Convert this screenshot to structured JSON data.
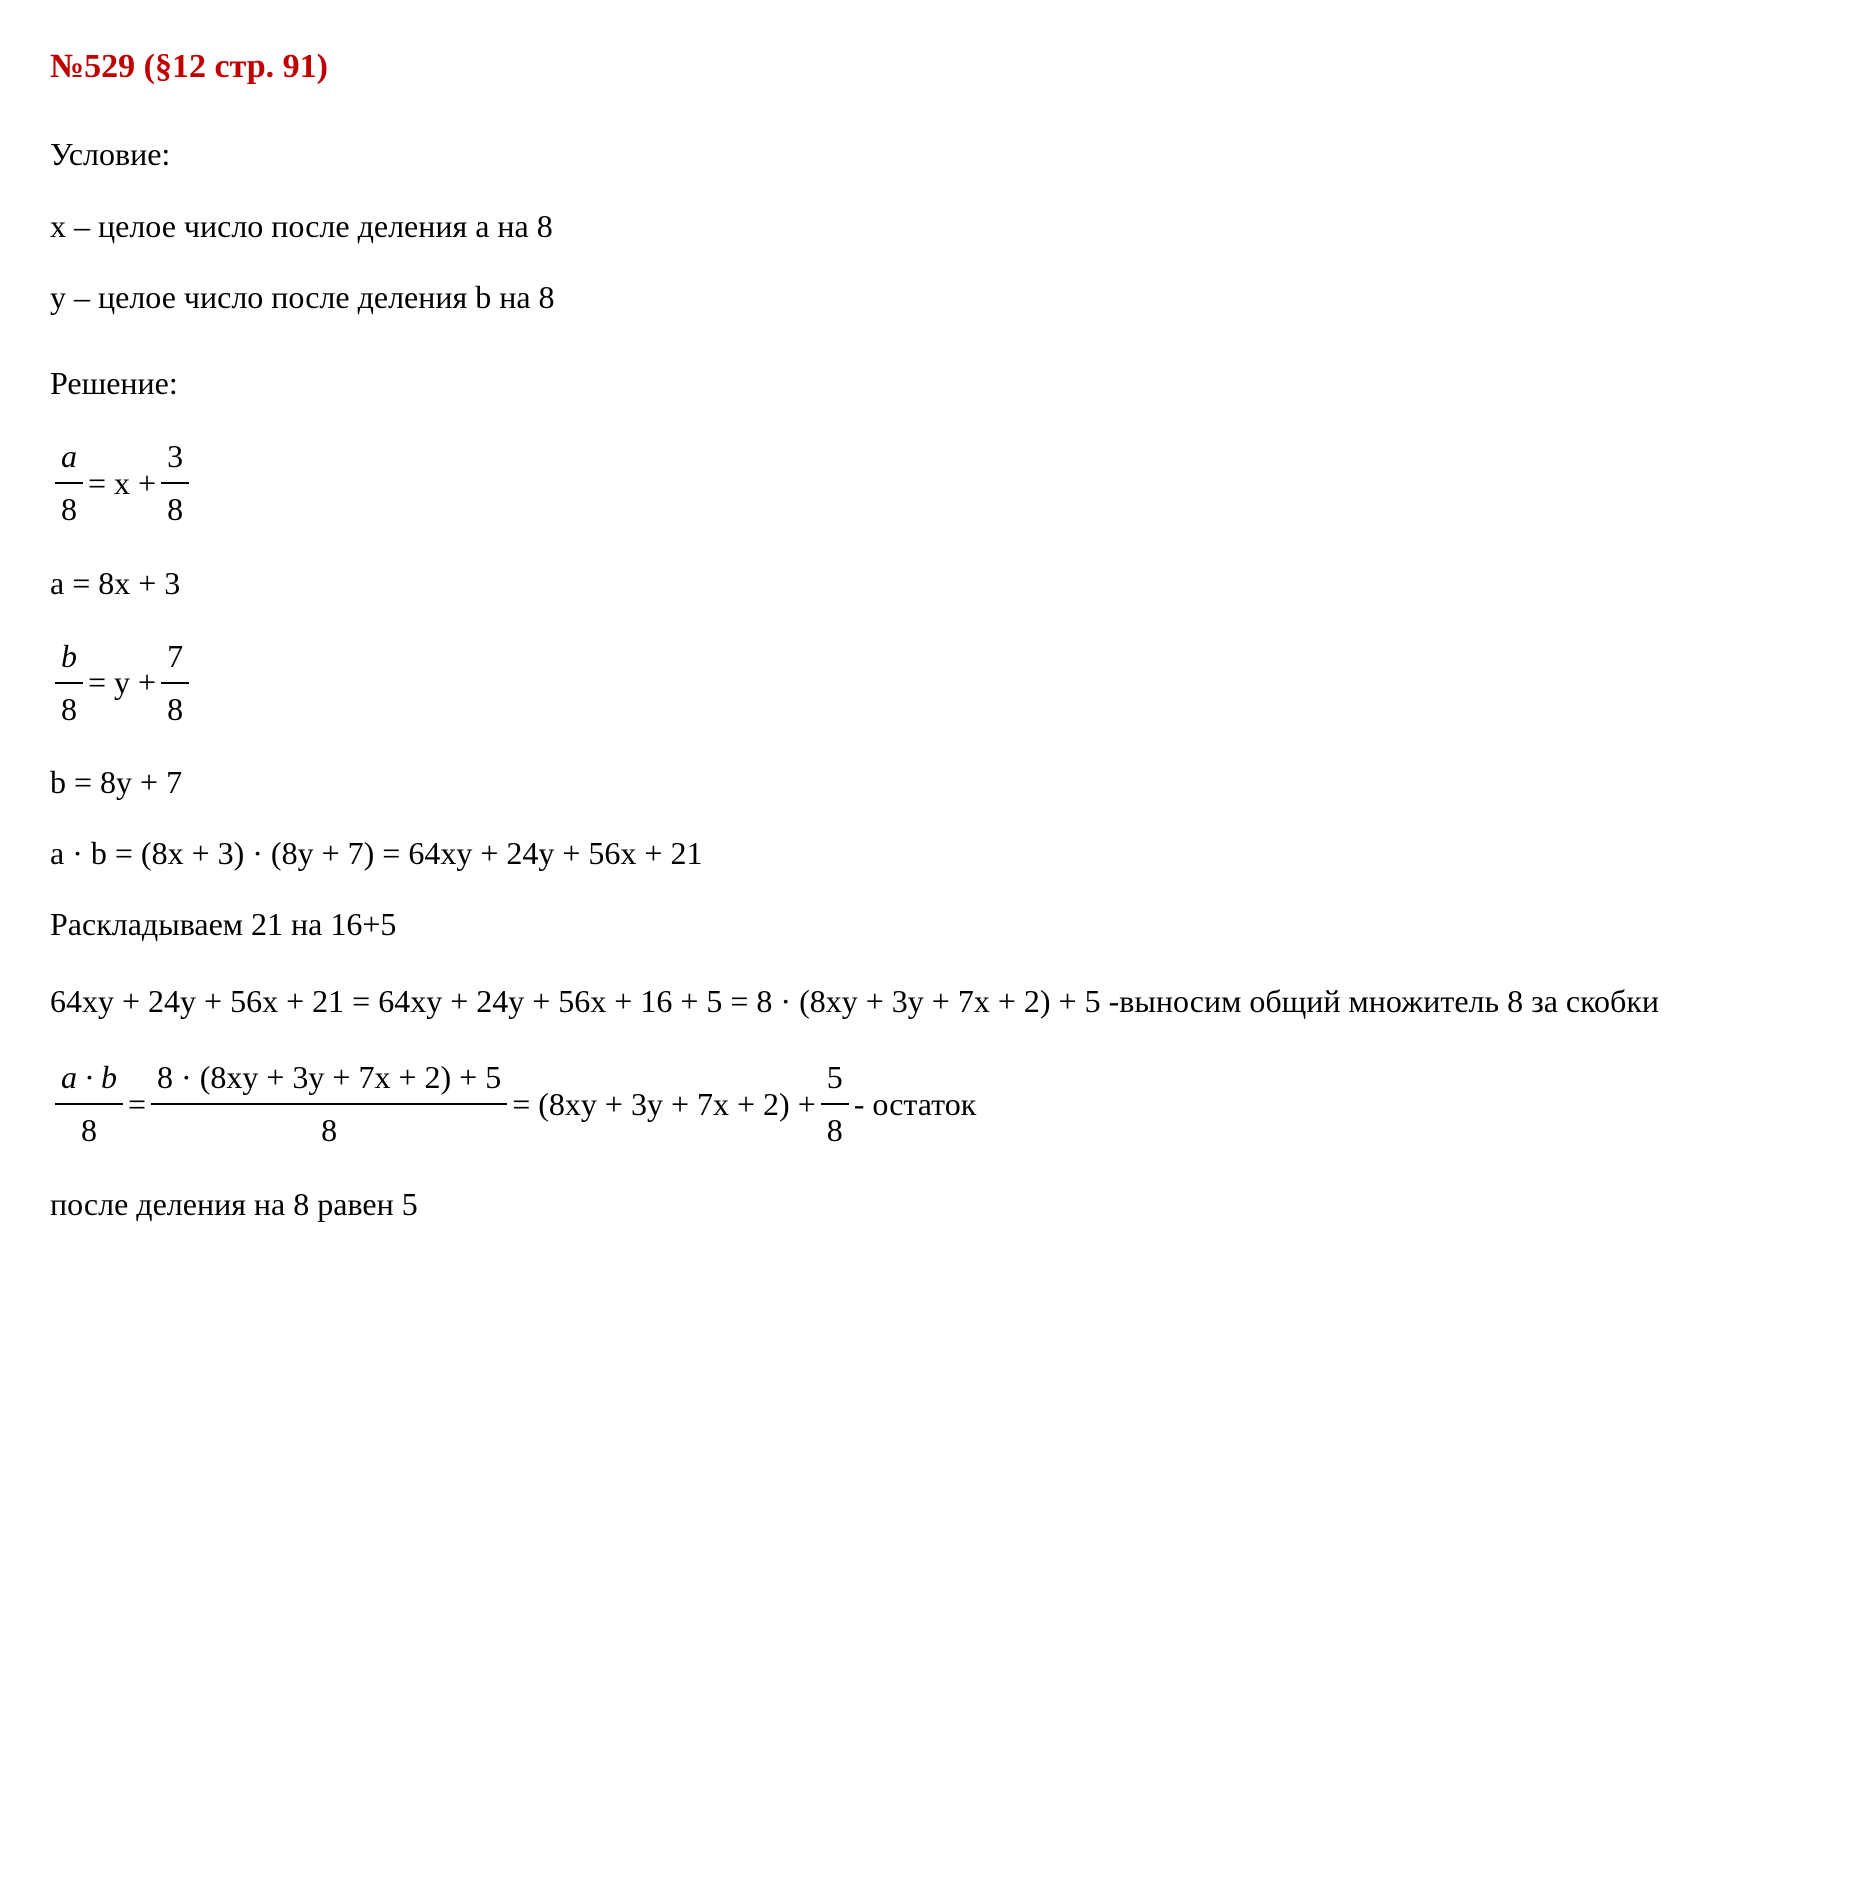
{
  "heading": "№529 (§12 стр. 91)",
  "condition_label": "Условие:",
  "condition_line1": "x – целое число после деления a на 8",
  "condition_line2": "y – целое число после деления b на 8",
  "solution_label": "Решение:",
  "eq1": {
    "lhs_num": "a",
    "lhs_den": "8",
    "mid": " = x + ",
    "rhs_num": "3",
    "rhs_den": "8"
  },
  "eq2": "a = 8x + 3",
  "eq3": {
    "lhs_num": "b",
    "lhs_den": "8",
    "mid": " = y + ",
    "rhs_num": "7",
    "rhs_den": "8"
  },
  "eq4": "b = 8y + 7",
  "eq5": "a · b = (8x + 3) · (8y + 7) = 64xy + 24y + 56x + 21",
  "note1": "Раскладываем 21 на 16+5",
  "eq6": "64xy + 24y + 56x + 21 = 64xy + 24y + 56x + 16 + 5 = 8 · (8xy + 3y + 7x + 2) + 5 -выносим общий множитель 8 за скобки",
  "eq7": {
    "f1_num": "a · b",
    "f1_den": "8",
    "eq1": " = ",
    "f2_num": "8 · (8xy + 3y + 7x + 2) + 5",
    "f2_den": "8",
    "eq2": " = (8xy + 3y + 7x + 2) + ",
    "f3_num": "5",
    "f3_den": "8",
    "tail": " - остаток"
  },
  "final": "после деления на 8 равен 5",
  "colors": {
    "heading": "#c00000",
    "text": "#000000",
    "background": "#ffffff"
  },
  "typography": {
    "font_family": "Times New Roman",
    "base_fontsize": 32,
    "heading_fontsize": 34,
    "heading_weight": "bold"
  }
}
